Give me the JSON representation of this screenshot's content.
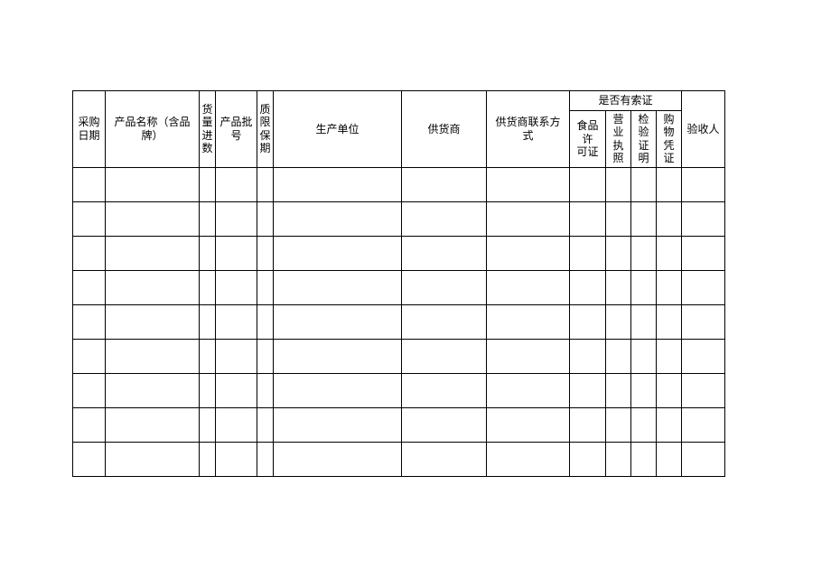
{
  "table": {
    "columns": {
      "c1": {
        "label": "采购\n日期",
        "width": 36
      },
      "c2": {
        "label": "产品名称（含品\n牌）",
        "width": 104
      },
      "c3": {
        "label": "货\n量\n进\n数",
        "width": 18
      },
      "c4": {
        "label": "产品批\n号",
        "width": 46
      },
      "c5": {
        "label": "质\n限\n保\n期",
        "width": 18
      },
      "c6": {
        "label": "生产单位",
        "width": 142
      },
      "c7": {
        "label": "供货商",
        "width": 94
      },
      "c8": {
        "label": "供货商联系方\n式",
        "width": 92
      },
      "grp": {
        "label": "是否有索证",
        "width": 124
      },
      "g1": {
        "label": "食品许\n可证",
        "width": 40
      },
      "g2": {
        "label": "营业\n执照",
        "width": 28
      },
      "g3": {
        "label": "检验\n证明",
        "width": 28
      },
      "g4": {
        "label": "购物\n凭证",
        "width": 28
      },
      "c13": {
        "label": "验收人",
        "width": 48
      }
    },
    "body_rows": 9,
    "border_color": "#000000",
    "background_color": "#ffffff",
    "font_size": 12,
    "header_row1_height": 22,
    "header_row2_height": 38,
    "body_row_height": 38
  }
}
